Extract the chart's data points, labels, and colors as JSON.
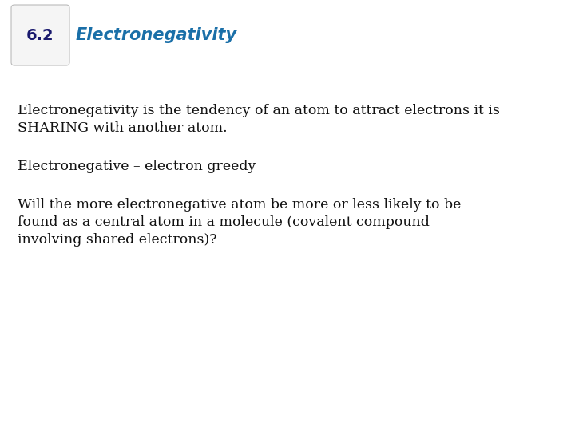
{
  "background_color": "#ffffff",
  "badge_number": "6.2",
  "badge_bg": "#e0e0e0",
  "badge_bg2": "#f5f5f5",
  "badge_border": "#bbbbbb",
  "badge_text_color": "#1a1a6e",
  "title": "Electronegativity",
  "title_color": "#1a6fa8",
  "title_fontsize": 15,
  "body_text_color": "#111111",
  "body_fontsize": 12.5,
  "para1_line1": "Electronegativity is the tendency of an atom to attract electrons it is",
  "para1_line2": "SHARING with another atom.",
  "para2": "Electronegative – electron greedy",
  "para3_line1": "Will the more electronegative atom be more or less likely to be",
  "para3_line2": "found as a central atom in a molecule (covalent compound",
  "para3_line3": "involving shared electrons)?"
}
